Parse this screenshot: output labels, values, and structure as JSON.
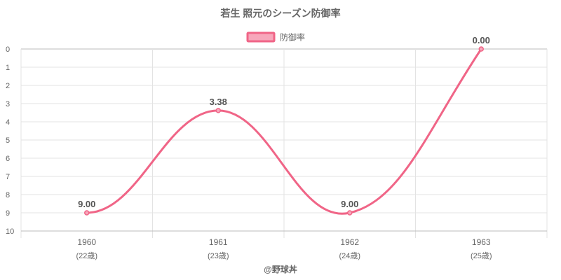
{
  "chart_data": {
    "type": "line",
    "title": "若生 照元のシーズン防御率",
    "categories": [
      "1960",
      "1961",
      "1962",
      "1963"
    ],
    "category_sublabels": [
      "(22歳)",
      "(23歳)",
      "(24歳)",
      "(25歳)"
    ],
    "series": [
      {
        "name": "防御率",
        "values": [
          9.0,
          3.38,
          9.0,
          0.0
        ],
        "data_labels": [
          "9.00",
          "3.38",
          "9.00",
          "0.00"
        ],
        "color": "#f06587",
        "fill": "#f7a7bb"
      }
    ],
    "ylim": [
      0,
      10
    ],
    "y_reversed": true,
    "y_ticks": [
      "0",
      "1",
      "2",
      "3",
      "4",
      "5",
      "6",
      "7",
      "8",
      "9",
      "10"
    ],
    "legend": "top",
    "grid": true,
    "smooth": true
  },
  "footer": {
    "credit": "@野球丼"
  },
  "colors": {
    "grid": "#e3e3e3",
    "axis": "#bdbdbd",
    "tick_text": "#666666",
    "title_text": "#666666",
    "data_label_text": "#555555"
  }
}
